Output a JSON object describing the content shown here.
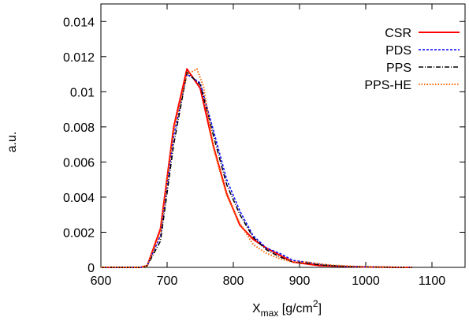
{
  "chart_data": {
    "type": "line",
    "title": "",
    "xlabel": {
      "main": "X",
      "sub": "max",
      "unit": " [g/cm",
      "sup": "2",
      "close": "]"
    },
    "ylabel": "a.u.",
    "xlim": [
      600,
      1150
    ],
    "ylim": [
      0,
      0.015
    ],
    "xticks": [
      600,
      700,
      800,
      900,
      1000,
      1100
    ],
    "xtick_labels": [
      "600",
      "700",
      "800",
      "900",
      "1000",
      "1100"
    ],
    "yticks": [
      0,
      0.002,
      0.004,
      0.006,
      0.008,
      0.01,
      0.012,
      0.014
    ],
    "ytick_labels": [
      "0",
      "0.002",
      "0.004",
      "0.006",
      "0.008",
      "0.01",
      "0.012",
      "0.014"
    ],
    "grid": false,
    "legend_position": "top-right",
    "series": [
      {
        "name": "CSR",
        "color": "#ff0000",
        "dash": "",
        "width": 2,
        "x": [
          600,
          660,
          670,
          690,
          710,
          730,
          750,
          770,
          790,
          810,
          830,
          850,
          870,
          890,
          910,
          930,
          950,
          970,
          990,
          1010,
          1030,
          1050,
          1070
        ],
        "y": [
          0,
          0,
          0.0001,
          0.0022,
          0.008,
          0.0113,
          0.0102,
          0.0069,
          0.0042,
          0.0024,
          0.0016,
          0.0011,
          0.0007,
          0.0003,
          0.0002,
          0.0001,
          8e-05,
          5e-05,
          3e-05,
          2e-05,
          1e-05,
          0,
          0
        ]
      },
      {
        "name": "PDS",
        "color": "#0000ff",
        "dash": "3,2",
        "width": 1.5,
        "x": [
          600,
          660,
          670,
          690,
          710,
          730,
          750,
          770,
          790,
          810,
          830,
          850,
          870,
          890,
          910,
          930,
          950,
          970,
          990,
          1010,
          1030,
          1050,
          1070
        ],
        "y": [
          0,
          0,
          0.0001,
          0.0018,
          0.0075,
          0.011,
          0.0105,
          0.0078,
          0.005,
          0.0032,
          0.0018,
          0.0011,
          0.0008,
          0.0004,
          0.0003,
          0.00018,
          0.0001,
          6e-05,
          4e-05,
          2e-05,
          1e-05,
          0,
          0
        ]
      },
      {
        "name": "PPS",
        "color": "#000000",
        "dash": "6,2,1,2",
        "width": 1.5,
        "x": [
          600,
          660,
          670,
          690,
          710,
          730,
          750,
          770,
          790,
          810,
          830,
          850,
          870,
          890,
          910,
          930,
          950,
          970,
          990,
          1010,
          1030,
          1050,
          1070
        ],
        "y": [
          0,
          0,
          0.0001,
          0.0015,
          0.007,
          0.0111,
          0.0104,
          0.0075,
          0.0047,
          0.003,
          0.0017,
          0.001,
          0.0006,
          0.0003,
          0.00025,
          0.00015,
          0.0001,
          5e-05,
          3e-05,
          2e-05,
          1e-05,
          0,
          0
        ]
      },
      {
        "name": "PPS-HE",
        "color": "#ff6600",
        "dash": "1.5,2",
        "width": 2,
        "x": [
          600,
          660,
          670,
          690,
          710,
          730,
          745,
          755,
          770,
          790,
          810,
          830,
          850,
          870,
          890,
          910,
          930,
          950,
          970,
          990,
          1010,
          1030,
          1050,
          1070
        ],
        "y": [
          0,
          0,
          0.0001,
          0.002,
          0.0078,
          0.011,
          0.0113,
          0.0103,
          0.0068,
          0.0041,
          0.0025,
          0.0013,
          0.0008,
          0.0005,
          0.0003,
          0.0003,
          0.0002,
          0.00012,
          8e-05,
          4e-05,
          2e-05,
          1e-05,
          0,
          0
        ]
      }
    ]
  }
}
